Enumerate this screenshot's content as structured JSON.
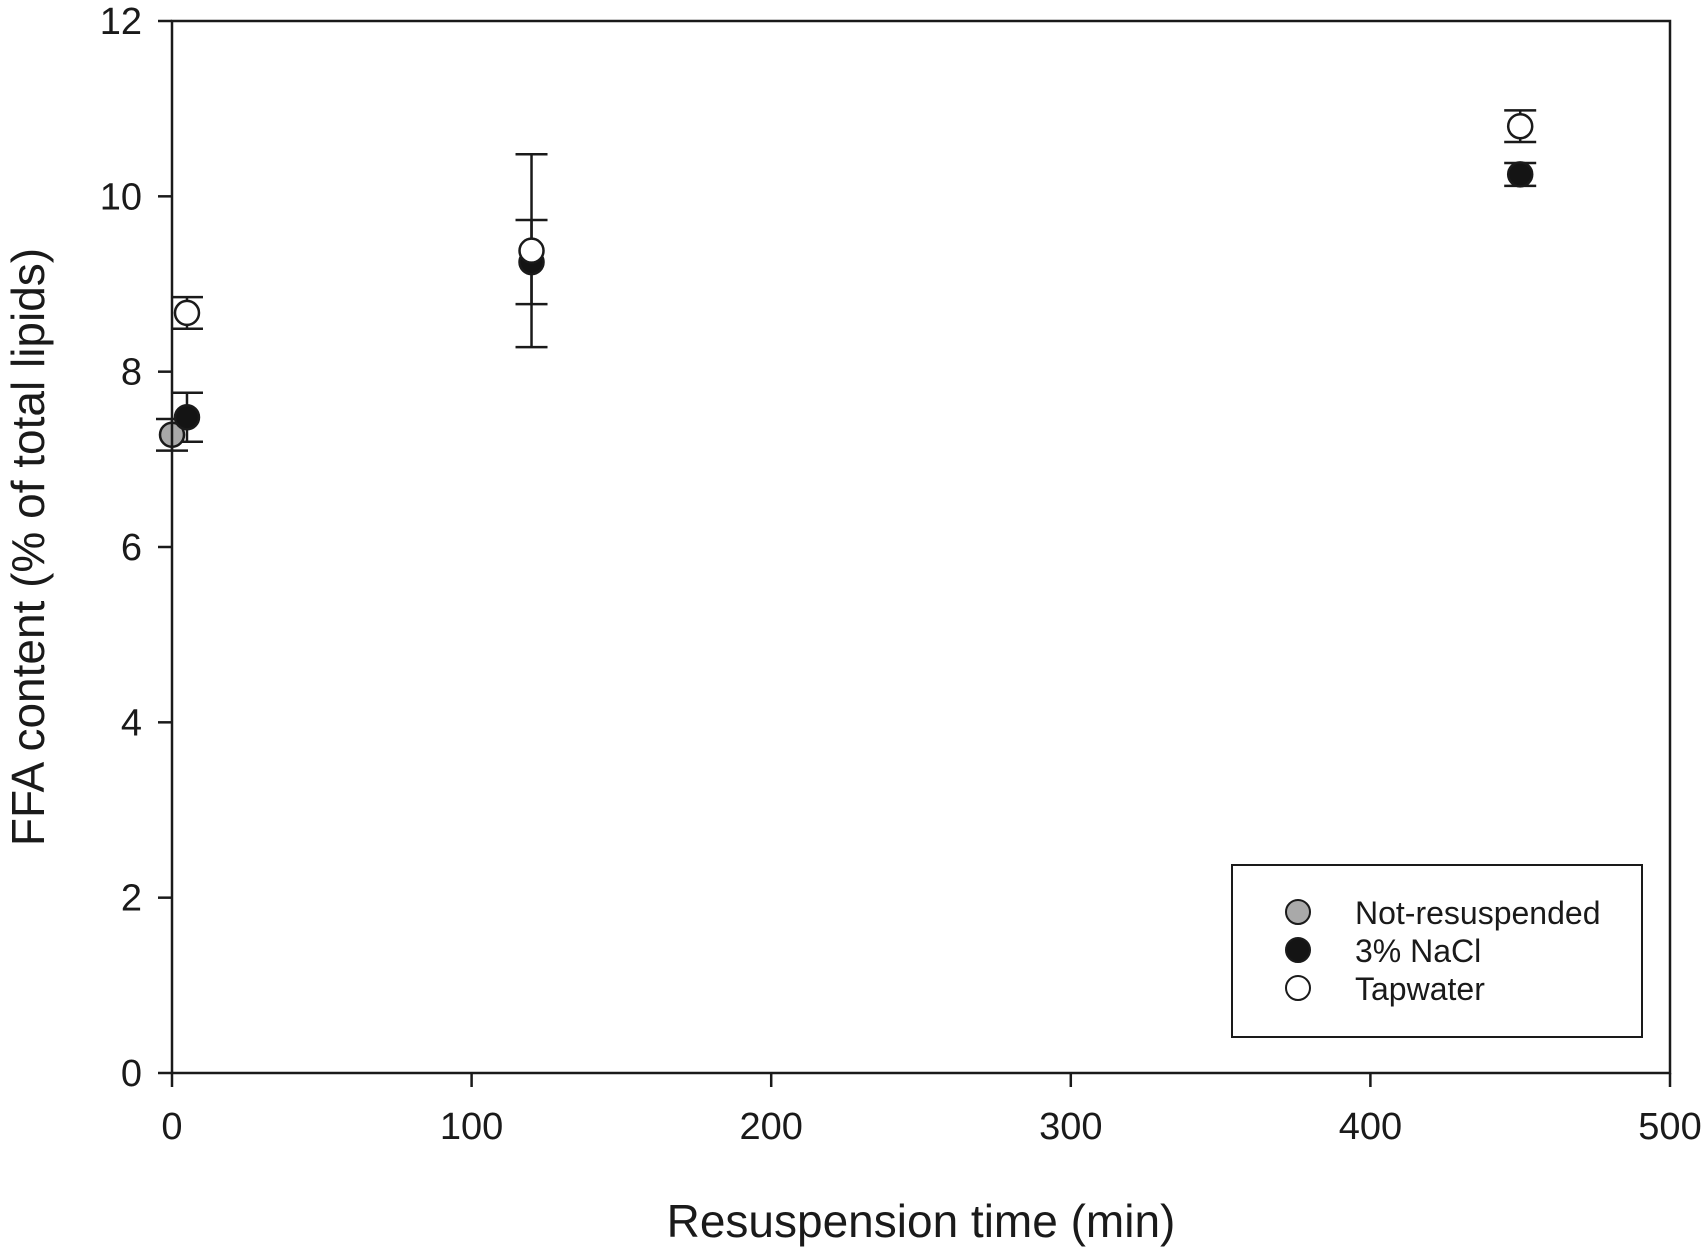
{
  "chart_data": {
    "type": "scatter",
    "xlabel": "Resuspension time (min)",
    "ylabel": "FFA content (% of total lipids)",
    "xlim": [
      0,
      500
    ],
    "ylim": [
      0,
      12
    ],
    "xticks": [
      0,
      100,
      200,
      300,
      400,
      500
    ],
    "yticks": [
      0,
      2,
      4,
      6,
      8,
      10,
      12
    ],
    "grid": false,
    "legend_position": "bottom-right",
    "series": [
      {
        "name": "Not-resuspended",
        "color": "#a9a9a9",
        "marker": "filled-circle",
        "points": [
          {
            "x": 0,
            "y": 7.28,
            "err": 0.18
          }
        ]
      },
      {
        "name": "3% NaCl",
        "color": "#141414",
        "marker": "filled-circle",
        "points": [
          {
            "x": 5,
            "y": 7.48,
            "err": 0.28
          },
          {
            "x": 120,
            "y": 9.25,
            "err": 0.48
          },
          {
            "x": 450,
            "y": 10.25,
            "err": 0.13
          }
        ]
      },
      {
        "name": "Tapwater",
        "color": "#ffffff",
        "marker": "open-circle",
        "points": [
          {
            "x": 5,
            "y": 8.67,
            "err": 0.18
          },
          {
            "x": 120,
            "y": 9.38,
            "err": 1.1
          },
          {
            "x": 450,
            "y": 10.8,
            "err": 0.18
          }
        ]
      }
    ]
  }
}
